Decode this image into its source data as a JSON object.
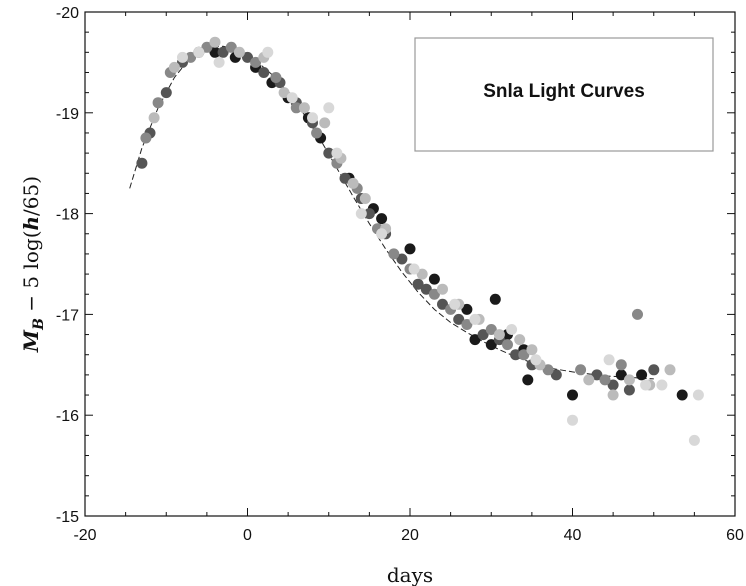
{
  "chart_data": {
    "type": "scatter",
    "title": "",
    "legend_text": "Snla Light Curves",
    "legend_placement": "top-right",
    "xlabel": "days",
    "ylabel": "M_B − 5 log(h/65)",
    "ylabel_parts": {
      "main": "M",
      "subscript": "B",
      "rest": " − 5 log(",
      "italic": "h",
      "end": "/65)"
    },
    "xlim": [
      -20,
      60
    ],
    "ylim": [
      -20,
      -15
    ],
    "y_inverted": true,
    "grid": false,
    "xticks": [
      -20,
      0,
      20,
      40,
      60
    ],
    "yticks": [
      -20,
      -19,
      -18,
      -17,
      -16,
      -15
    ],
    "fit_curve": {
      "x": [
        -14.5,
        -13,
        -11,
        -9,
        -7,
        -5,
        -3,
        -1,
        1,
        3,
        5,
        7,
        9,
        11,
        13,
        15,
        17,
        19,
        21,
        23,
        25,
        27,
        29,
        31,
        33,
        35,
        37,
        40,
        44,
        48,
        50
      ],
      "y": [
        -18.25,
        -18.65,
        -19.05,
        -19.35,
        -19.55,
        -19.65,
        -19.66,
        -19.62,
        -19.52,
        -19.38,
        -19.2,
        -18.98,
        -18.73,
        -18.45,
        -18.17,
        -17.9,
        -17.65,
        -17.42,
        -17.22,
        -17.05,
        -16.92,
        -16.82,
        -16.73,
        -16.65,
        -16.58,
        -16.52,
        -16.47,
        -16.43,
        -16.39,
        -16.37,
        -16.36
      ]
    },
    "series": [
      {
        "color": "#1a1a1a",
        "x": [
          -4,
          -1.5,
          1,
          3,
          5,
          7.5,
          9,
          12.5,
          15.5,
          16.5,
          20,
          23,
          27,
          28,
          30,
          30.5,
          32,
          34,
          34.5,
          40,
          46,
          48.5,
          53.5
        ],
        "y": [
          -19.6,
          -19.55,
          -19.45,
          -19.3,
          -19.15,
          -18.95,
          -18.75,
          -18.35,
          -18.05,
          -17.95,
          -17.65,
          -17.35,
          -17.05,
          -16.75,
          -16.7,
          -17.15,
          -16.8,
          -16.65,
          -16.35,
          -16.2,
          -16.4,
          -16.4,
          -16.2
        ]
      },
      {
        "color": "#555555",
        "x": [
          -13,
          -12,
          -10,
          -8,
          -6,
          -3,
          0,
          2,
          4,
          6,
          8,
          10,
          12,
          14,
          15,
          17,
          19,
          21,
          22,
          24,
          26,
          29,
          31,
          33,
          35,
          38,
          43,
          45,
          47,
          50
        ],
        "y": [
          -18.5,
          -18.8,
          -19.2,
          -19.5,
          -19.6,
          -19.6,
          -19.55,
          -19.4,
          -19.3,
          -19.1,
          -18.9,
          -18.6,
          -18.35,
          -18.15,
          -18.0,
          -17.8,
          -17.55,
          -17.3,
          -17.25,
          -17.1,
          -16.95,
          -16.8,
          -16.75,
          -16.6,
          -16.5,
          -16.4,
          -16.4,
          -16.3,
          -16.25,
          -16.45
        ]
      },
      {
        "color": "#888888",
        "x": [
          -12.5,
          -11,
          -9.5,
          -7,
          -5,
          -2,
          1,
          3.5,
          6,
          8.5,
          11,
          13.5,
          16,
          18,
          20,
          23,
          25,
          27,
          30,
          32,
          34,
          37,
          41,
          44,
          46,
          48
        ],
        "y": [
          -18.75,
          -19.1,
          -19.4,
          -19.55,
          -19.65,
          -19.65,
          -19.5,
          -19.35,
          -19.05,
          -18.8,
          -18.5,
          -18.25,
          -17.85,
          -17.6,
          -17.45,
          -17.2,
          -17.05,
          -16.9,
          -16.85,
          -16.7,
          -16.6,
          -16.45,
          -16.45,
          -16.35,
          -16.5,
          -17.0
        ]
      },
      {
        "color": "#bbbbbb",
        "x": [
          -11.5,
          -9,
          -4,
          -1,
          2,
          4.5,
          7,
          9.5,
          11.5,
          13,
          14.5,
          17,
          21.5,
          24,
          26,
          28.5,
          31,
          33.5,
          35,
          36,
          42,
          45,
          47,
          49.5,
          52
        ],
        "y": [
          -18.95,
          -19.45,
          -19.7,
          -19.6,
          -19.55,
          -19.2,
          -19.05,
          -18.9,
          -18.55,
          -18.3,
          -18.15,
          -17.85,
          -17.4,
          -17.25,
          -17.1,
          -16.95,
          -16.8,
          -16.75,
          -16.65,
          -16.5,
          -16.35,
          -16.2,
          -16.35,
          -16.3,
          -16.45
        ]
      },
      {
        "color": "#d8d8d8",
        "x": [
          -8,
          -6,
          -3.5,
          2.5,
          5.5,
          8,
          10,
          11,
          14,
          16.5,
          20.5,
          25.5,
          28,
          32.5,
          35.5,
          40,
          44.5,
          49,
          51,
          55.5,
          55
        ],
        "y": [
          -19.55,
          -19.6,
          -19.5,
          -19.6,
          -19.15,
          -18.95,
          -19.05,
          -18.6,
          -18.0,
          -17.8,
          -17.45,
          -17.1,
          -16.95,
          -16.85,
          -16.55,
          -15.95,
          -16.55,
          -16.3,
          -16.3,
          -16.2,
          -15.75
        ]
      }
    ]
  }
}
